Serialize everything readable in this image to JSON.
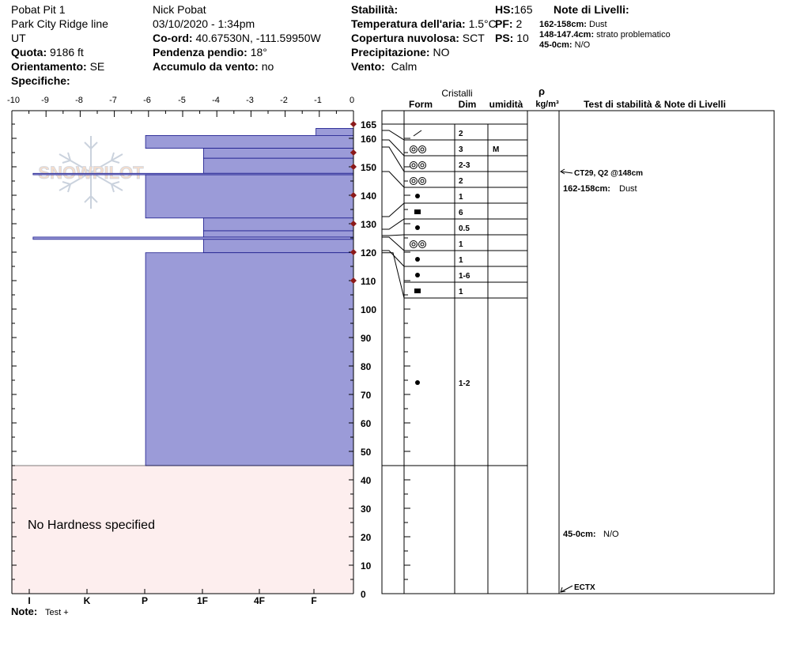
{
  "header": {
    "col1": {
      "pit_name": "Pobat Pit 1",
      "location": "Park City Ridge line",
      "state": "UT",
      "elevation_label": "Quota:",
      "elevation_value": "9186 ft",
      "aspect_label": "Orientamento:",
      "aspect_value": "SE",
      "specifics_label": "Specifiche:"
    },
    "col2": {
      "observer": "Nick Pobat",
      "datetime": "03/10/2020 - 1:34pm",
      "coord_label": "Co-ord:",
      "coord_value": "40.67530N, -111.59950W",
      "slope_label": "Pendenza pendio:",
      "slope_value": "18°",
      "wind_load_label": "Accumulo da vento:",
      "wind_load_value": "no"
    },
    "col3": {
      "stability_label": "Stabilità:",
      "air_temp_label": "Temperatura dell'aria:",
      "air_temp_value": "1.5°C",
      "cloud_label": "Copertura nuvolosa:",
      "cloud_value": "SCT",
      "precip_label": "Precipitazione:",
      "precip_value": "NO",
      "wind_label": "Vento:",
      "wind_value": "Calm"
    },
    "col4": {
      "hs_label": "HS:",
      "hs_value": "165",
      "pf_label": "PF:",
      "pf_value": "2",
      "ps_label": "PS:",
      "ps_value": "10"
    },
    "layer_notes": {
      "title": "Note di Livelli:",
      "items": [
        {
          "range": "162-158cm:",
          "text": "Dust"
        },
        {
          "range": "148-147.4cm:",
          "text": "strato problematico"
        },
        {
          "range": "45-0cm:",
          "text": "N/O"
        }
      ]
    }
  },
  "column_headers": {
    "crystals": "Cristalli",
    "form": "Form",
    "size": "Dim",
    "moisture": "umidità",
    "density_symbol": "ρ",
    "density_unit": "kg/m³",
    "stability_notes": "Test di stabilità & Note di Livelli"
  },
  "hardness_ticks": [
    "-10",
    "-9",
    "-8",
    "-7",
    "-6",
    "-5",
    "-4",
    "-3",
    "-2",
    "-1",
    "0"
  ],
  "hardness_labels": [
    "I",
    "K",
    "P",
    "1F",
    "4F",
    "F"
  ],
  "depth_ticks": [
    "165",
    "160",
    "150",
    "140",
    "130",
    "120",
    "110",
    "100",
    "90",
    "80",
    "70",
    "60",
    "50",
    "40",
    "30",
    "20",
    "10",
    "0"
  ],
  "layers": [
    {
      "size": "2",
      "moisture": ""
    },
    {
      "size": "3",
      "moisture": "M"
    },
    {
      "size": "2-3",
      "moisture": ""
    },
    {
      "size": "2",
      "moisture": ""
    },
    {
      "size": "1",
      "moisture": ""
    },
    {
      "size": "6",
      "moisture": ""
    },
    {
      "size": "0.5",
      "moisture": ""
    },
    {
      "size": "1",
      "moisture": ""
    },
    {
      "size": "1",
      "moisture": ""
    },
    {
      "size": "1-6",
      "moisture": ""
    },
    {
      "size": "1",
      "moisture": ""
    },
    {
      "size": "1-2",
      "moisture": ""
    }
  ],
  "stability": {
    "test1": "CT29, Q2 @148cm",
    "note1_range": "162-158cm:",
    "note1_text": "Dust",
    "note2_range": "45-0cm:",
    "note2_text": "N/O",
    "test2": "ECTX"
  },
  "no_hardness": "No Hardness specified",
  "footer": {
    "note_label": "Note:",
    "note_value": "Test +"
  },
  "logo_text": "SNOWPILOT",
  "colors": {
    "layer_fill": "#9b9bd8",
    "layer_stroke": "#1a1a8c",
    "no_hardness_bg": "#fdeeee",
    "marker": "#8b1a1a"
  }
}
